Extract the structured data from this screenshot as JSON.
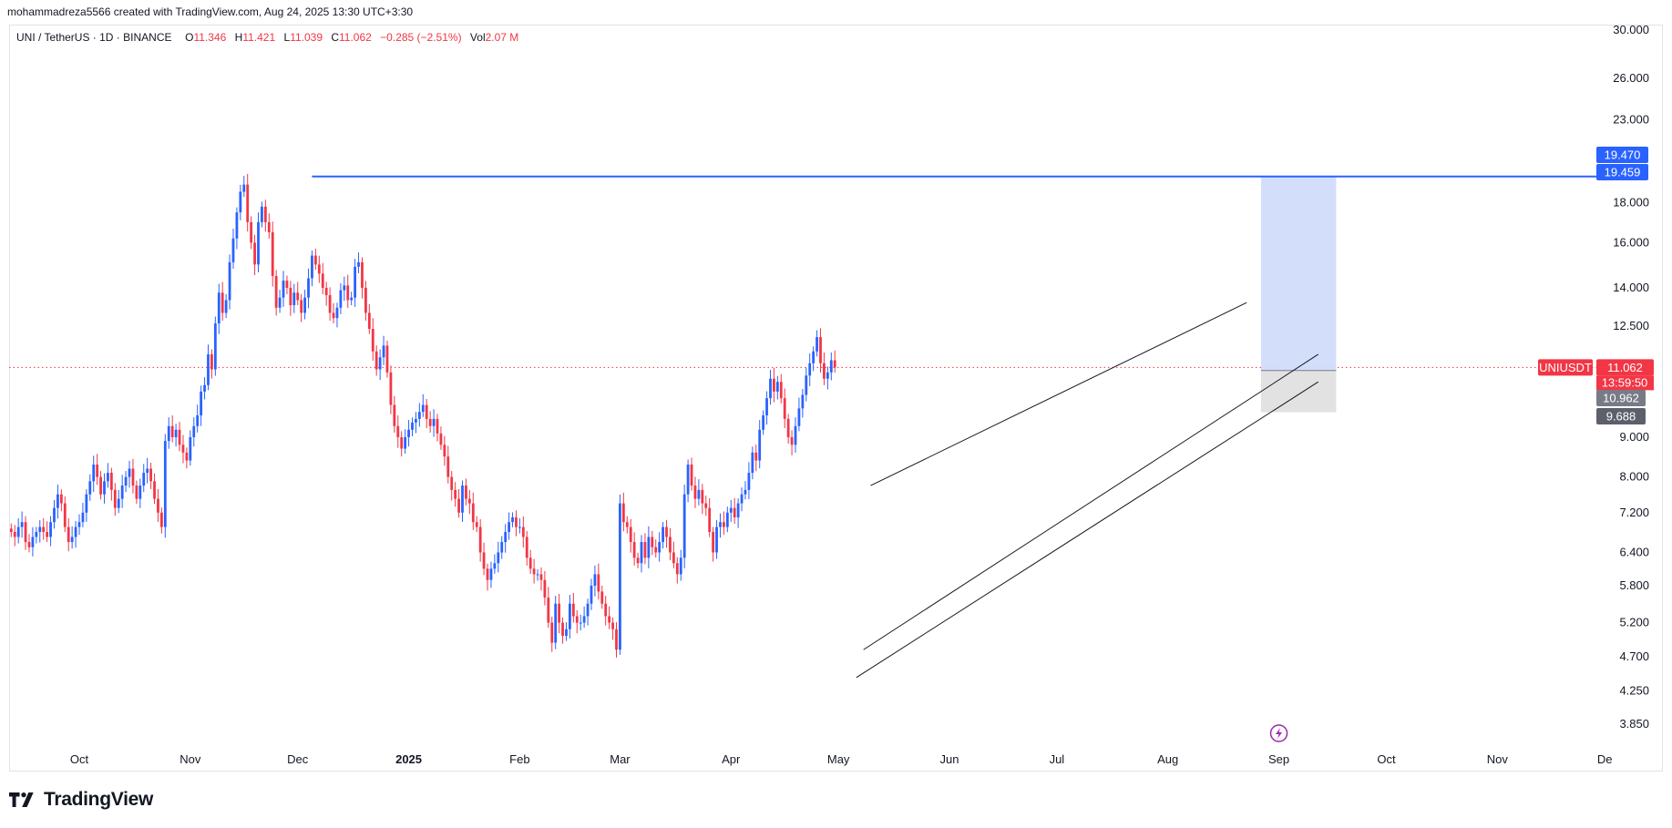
{
  "header": {
    "credit": "mohammadreza5566 created with TradingView.com, Aug 24, 2025 13:30 UTC+3:30"
  },
  "legend": {
    "symbol": "UNI / TetherUS · 1D · BINANCE",
    "open_label": "O",
    "open": "11.346",
    "high_label": "H",
    "high": "11.421",
    "low_label": "L",
    "low": "11.039",
    "close_label": "C",
    "close": "11.062",
    "change": "−0.285 (−2.51%)",
    "vol_label": "Vol",
    "vol": "2.07 M"
  },
  "colors": {
    "up": "#2962ff",
    "down": "#f23645",
    "resistance_line": "#2962ff",
    "target_zone": "#d1dcfb",
    "stop_zone": "#e0e0e0",
    "channel": "#131722"
  },
  "price_tags": {
    "target_top": "19.470",
    "target_line": "19.459",
    "symbol_name": "UNIUSDT",
    "last_price": "11.062",
    "countdown": "13:59:50",
    "entry": "10.962",
    "stop": "9.688"
  },
  "logo": {
    "text": "TradingView",
    "icon": "tradingview-logo-icon"
  },
  "event_icon": "lightning-icon",
  "chart_data": {
    "type": "candlestick",
    "y_scale": "log",
    "ylim": [
      3.6,
      30.5
    ],
    "y_ticks": [
      "30.000",
      "26.000",
      "23.000",
      "18.000",
      "16.000",
      "14.000",
      "12.500",
      "9.000",
      "8.000",
      "7.200",
      "6.400",
      "5.800",
      "5.200",
      "4.700",
      "4.250",
      "3.850"
    ],
    "x_ticks": [
      {
        "label": "Oct",
        "bold": false
      },
      {
        "label": "Nov",
        "bold": false
      },
      {
        "label": "Dec",
        "bold": false
      },
      {
        "label": "2025",
        "bold": true
      },
      {
        "label": "Feb",
        "bold": false
      },
      {
        "label": "Mar",
        "bold": false
      },
      {
        "label": "Apr",
        "bold": false
      },
      {
        "label": "May",
        "bold": false
      },
      {
        "label": "Jun",
        "bold": false
      },
      {
        "label": "Jul",
        "bold": false
      },
      {
        "label": "Aug",
        "bold": false
      },
      {
        "label": "Sep",
        "bold": false
      },
      {
        "label": "Oct",
        "bold": false
      },
      {
        "label": "Nov",
        "bold": false
      },
      {
        "label": "De",
        "bold": false
      }
    ],
    "x_tick_days": [
      0,
      31,
      61,
      92,
      123,
      151,
      182,
      212,
      243,
      273,
      304,
      335,
      365,
      396,
      426
    ],
    "candle_start_day": -19,
    "close_series": [
      6.8,
      6.7,
      6.9,
      7.0,
      6.6,
      6.5,
      6.7,
      6.8,
      6.9,
      6.8,
      6.7,
      7.0,
      7.3,
      7.6,
      7.4,
      6.9,
      6.6,
      6.7,
      6.9,
      7.0,
      7.2,
      7.6,
      7.9,
      8.3,
      8.0,
      7.6,
      7.9,
      8.1,
      7.7,
      7.3,
      7.5,
      7.8,
      8.0,
      8.2,
      7.8,
      7.5,
      7.8,
      8.1,
      8.2,
      7.9,
      7.5,
      7.2,
      6.9,
      8.9,
      9.3,
      9.0,
      9.2,
      8.8,
      8.6,
      8.4,
      9.0,
      9.3,
      9.6,
      10.3,
      10.5,
      11.5,
      11.0,
      12.6,
      13.8,
      13.0,
      13.5,
      15.1,
      16.2,
      17.5,
      18.6,
      19.0,
      17.0,
      16.0,
      15.0,
      17.0,
      17.8,
      17.0,
      16.5,
      14.5,
      13.2,
      13.6,
      14.3,
      14.0,
      13.3,
      13.8,
      13.5,
      13.0,
      13.6,
      14.4,
      15.4,
      15.0,
      14.6,
      14.0,
      13.7,
      13.0,
      12.8,
      13.2,
      13.9,
      14.1,
      13.5,
      13.6,
      14.9,
      15.1,
      14.0,
      13.0,
      12.4,
      11.6,
      11.0,
      11.4,
      11.8,
      10.9,
      9.9,
      9.3,
      9.0,
      8.7,
      9.0,
      9.2,
      9.4,
      9.5,
      9.7,
      9.9,
      9.5,
      9.3,
      9.5,
      9.1,
      8.8,
      8.5,
      8.0,
      7.7,
      7.5,
      7.2,
      7.8,
      7.5,
      7.4,
      7.0,
      6.9,
      6.4,
      6.1,
      5.9,
      6.1,
      6.2,
      6.4,
      6.6,
      6.8,
      7.0,
      7.1,
      6.9,
      6.9,
      6.7,
      6.3,
      6.1,
      6.0,
      6.0,
      5.9,
      5.6,
      5.2,
      4.9,
      5.5,
      5.2,
      5.0,
      5.1,
      5.5,
      5.3,
      5.2,
      5.2,
      5.3,
      5.5,
      5.8,
      6.0,
      5.7,
      5.5,
      5.3,
      5.2,
      5.1,
      4.8,
      7.4,
      7.0,
      6.9,
      6.6,
      6.3,
      6.2,
      6.6,
      6.3,
      6.7,
      6.5,
      6.4,
      6.6,
      6.9,
      6.7,
      6.4,
      6.2,
      6.0,
      6.3,
      7.6,
      8.3,
      7.8,
      7.5,
      7.7,
      7.4,
      7.3,
      6.8,
      6.4,
      6.9,
      7.0,
      6.9,
      7.2,
      7.3,
      7.1,
      7.4,
      7.6,
      7.7,
      8.1,
      8.6,
      8.4,
      9.2,
      9.6,
      10.1,
      10.7,
      10.3,
      10.6,
      10.1,
      9.5,
      9.0,
      8.8,
      9.3,
      9.8,
      10.2,
      10.8,
      11.2,
      11.6,
      12.1,
      11.2,
      10.7,
      10.9,
      11.3,
      11.062
    ],
    "channel_upper": {
      "from": {
        "day": 221,
        "price": 7.8
      },
      "to": {
        "day": 326,
        "price": 13.4
      }
    },
    "channel_mid": {
      "from": {
        "day": 219,
        "price": 4.8
      },
      "to": {
        "day": 346,
        "price": 11.5
      }
    },
    "channel_lower": {
      "from": {
        "day": 217,
        "price": 4.42
      },
      "to": {
        "day": 346,
        "price": 10.6
      }
    },
    "resistance": {
      "from_day": 65,
      "price": 19.459
    },
    "long_position": {
      "from_day": 330,
      "to_day": 351,
      "target": 19.47,
      "entry": 10.962,
      "stop": 9.688
    },
    "last_price": 11.062
  }
}
